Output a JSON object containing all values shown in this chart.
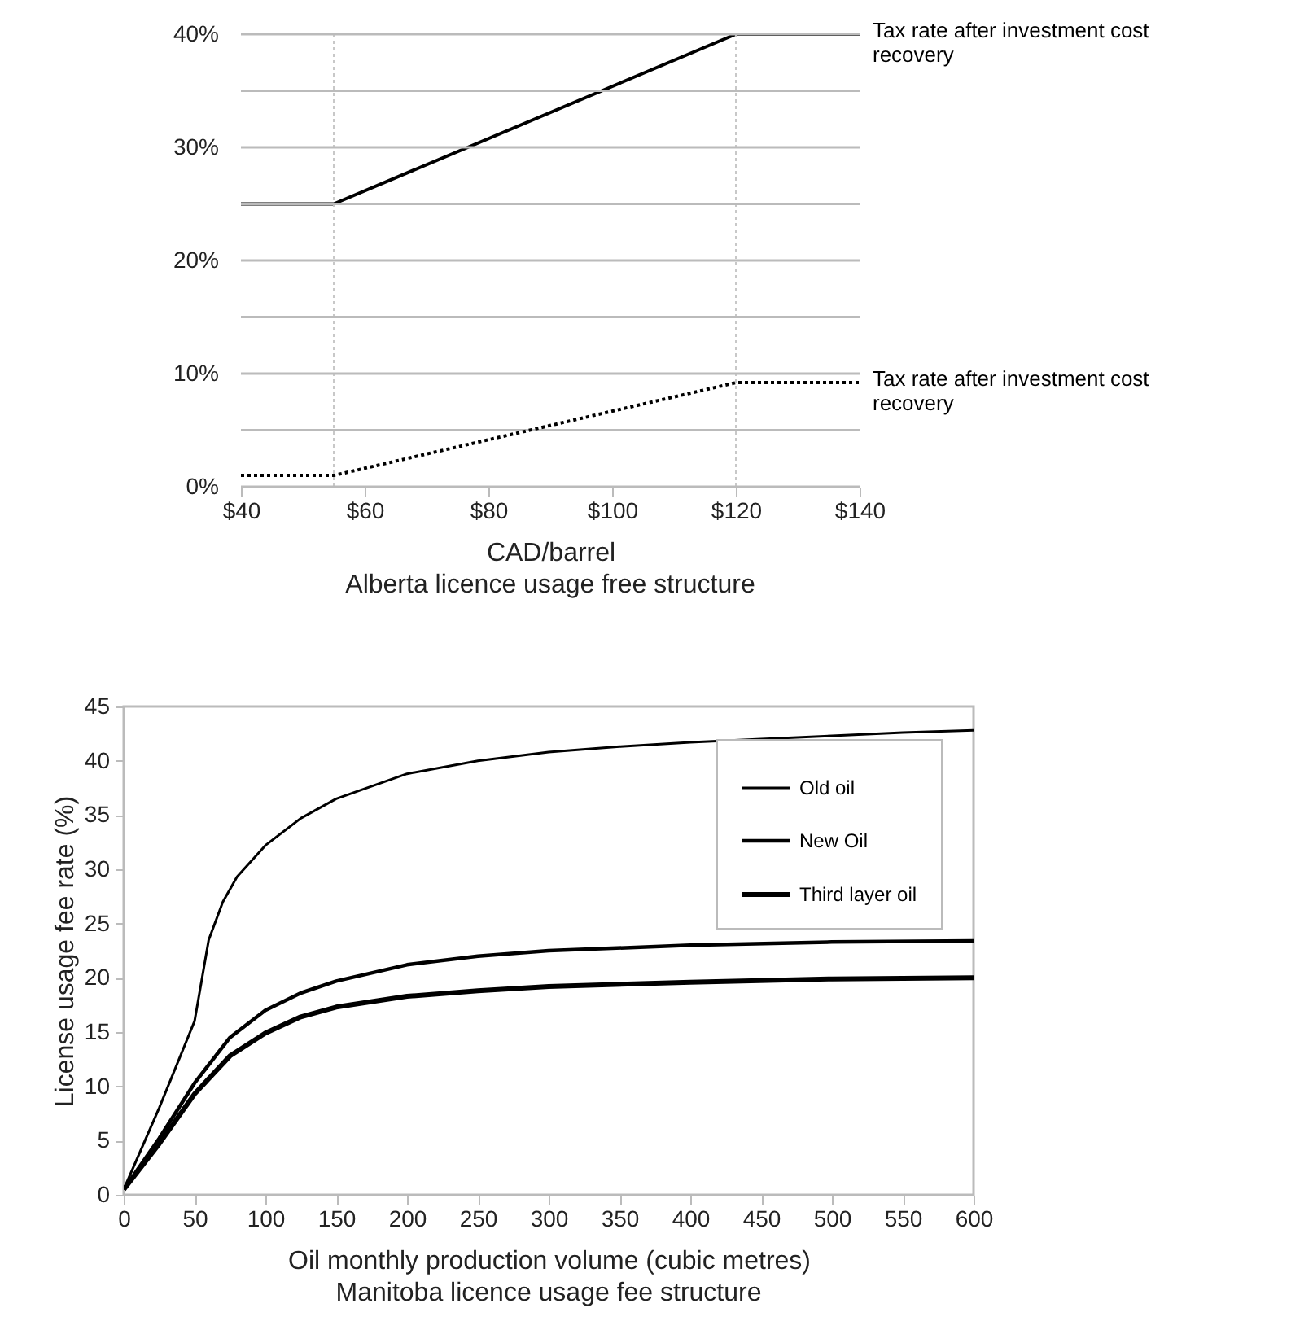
{
  "chart_data": [
    {
      "type": "line",
      "title": "Alberta licence usage free structure",
      "xlabel": "CAD/barrel",
      "series": [
        {
          "name": "Tax rate after investment cost recovery",
          "color": "#000000",
          "line_style": "solid",
          "x": [
            40,
            55,
            120,
            140
          ],
          "values": [
            25,
            25,
            40,
            40
          ]
        },
        {
          "name": "Tax rate after investment cost recovery",
          "color": "#000000",
          "line_style": "dotted",
          "x": [
            40,
            55,
            120,
            140
          ],
          "values": [
            1,
            1,
            9.2,
            9.2
          ]
        }
      ],
      "xlim": [
        40,
        140
      ],
      "xticks": [
        {
          "value": 40,
          "label": "$40"
        },
        {
          "value": 60,
          "label": "$60"
        },
        {
          "value": 80,
          "label": "$80"
        },
        {
          "value": 100,
          "label": "$100"
        },
        {
          "value": 120,
          "label": "$120"
        },
        {
          "value": 140,
          "label": "$140"
        }
      ],
      "ylim": [
        0,
        40
      ],
      "yticks": [
        {
          "value": 0,
          "label": "0%"
        },
        {
          "value": 5,
          "label": null
        },
        {
          "value": 10,
          "label": "10%"
        },
        {
          "value": 15,
          "label": null
        },
        {
          "value": 20,
          "label": "20%"
        },
        {
          "value": 25,
          "label": null
        },
        {
          "value": 30,
          "label": "30%"
        },
        {
          "value": 35,
          "label": null
        },
        {
          "value": 40,
          "label": "40%"
        }
      ],
      "ref_lines": [
        {
          "axis": "x",
          "value": 55,
          "color": "#c8c8c8",
          "line_style": "dotted"
        },
        {
          "axis": "x",
          "value": 120,
          "color": "#c8c8c8",
          "line_style": "dotted"
        }
      ],
      "grid": "y",
      "legend": false
    },
    {
      "type": "line",
      "title": "Manitoba licence usage fee structure",
      "xlabel": "Oil monthly production volume (cubic metres)",
      "ylabel": "License usage fee rate (%)",
      "series": [
        {
          "name": "Old oil",
          "color": "#000000",
          "x": [
            0,
            25,
            50,
            60,
            70,
            80,
            100,
            125,
            150,
            200,
            250,
            300,
            350,
            400,
            450,
            500,
            550,
            600
          ],
          "values": [
            0.5,
            8,
            16,
            23.5,
            27,
            29.3,
            32.2,
            34.7,
            36.5,
            38.8,
            40,
            40.8,
            41.3,
            41.7,
            42,
            42.3,
            42.6,
            42.8
          ]
        },
        {
          "name": "New Oil",
          "color": "#000000",
          "x": [
            0,
            25,
            50,
            75,
            100,
            125,
            150,
            200,
            250,
            300,
            400,
            500,
            600
          ],
          "values": [
            0.5,
            5.2,
            10.3,
            14.5,
            17,
            18.6,
            19.7,
            21.2,
            22,
            22.5,
            23,
            23.3,
            23.4
          ]
        },
        {
          "name": "Third layer oil",
          "color": "#000000",
          "x": [
            0,
            25,
            50,
            75,
            100,
            125,
            150,
            200,
            250,
            300,
            400,
            500,
            600
          ],
          "values": [
            0.5,
            4.7,
            9.3,
            12.8,
            14.9,
            16.4,
            17.3,
            18.3,
            18.8,
            19.2,
            19.6,
            19.9,
            20
          ]
        }
      ],
      "xlim": [
        0,
        600
      ],
      "xticks": [
        0,
        50,
        100,
        150,
        200,
        250,
        300,
        350,
        400,
        450,
        500,
        550,
        600
      ],
      "ylim": [
        0,
        45
      ],
      "yticks": [
        0,
        5,
        10,
        15,
        20,
        25,
        30,
        35,
        40,
        45
      ],
      "grid": false,
      "legend": "top right"
    }
  ]
}
